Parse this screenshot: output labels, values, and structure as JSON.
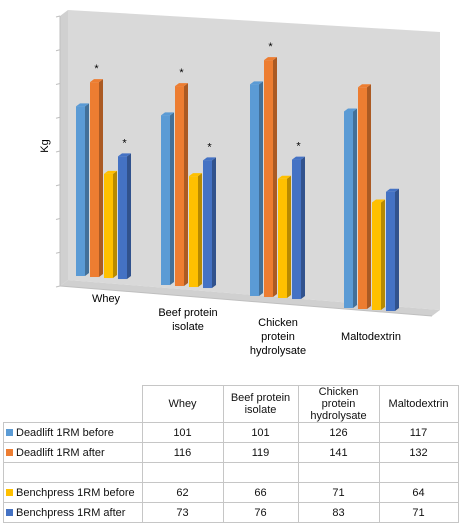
{
  "chart_data": {
    "type": "bar",
    "ylabel": "Kg",
    "categories": [
      "Whey",
      "Beef protein isolate",
      "Chicken protein hydrolysate",
      "Maltodextrin"
    ],
    "category_lines": [
      [
        "Whey"
      ],
      [
        "Beef protein",
        "isolate"
      ],
      [
        "Chicken",
        "protein",
        "hydrolysate"
      ],
      [
        "Maltodextrin"
      ]
    ],
    "series": [
      {
        "name": "Deadlift 1RM before",
        "color": "#5b9bd5",
        "values": [
          101,
          101,
          126,
          117
        ]
      },
      {
        "name": "Deadlift 1RM after",
        "color": "#ed7d31",
        "values": [
          116,
          119,
          141,
          132
        ]
      },
      {
        "name": "Benchpress 1RM before",
        "color": "#ffc000",
        "values": [
          62,
          66,
          71,
          64
        ]
      },
      {
        "name": "Benchpress 1RM after",
        "color": "#4472c4",
        "values": [
          73,
          76,
          83,
          71
        ]
      }
    ],
    "significance_marker": "*",
    "significant": [
      [
        false,
        true,
        false,
        true
      ],
      [
        false,
        true,
        false,
        true
      ],
      [
        false,
        true,
        false,
        true
      ],
      [
        false,
        false,
        false,
        false
      ]
    ],
    "ylim": [
      0,
      160
    ],
    "gridlines": false,
    "legend": "table below chart"
  },
  "table": {
    "headers": [
      "Whey",
      "Beef protein isolate",
      "Chicken protein hydrolysate",
      "Maltodextrin"
    ],
    "rows": [
      {
        "name": "Deadlift 1RM before",
        "color": "#5b9bd5",
        "values": [
          "101",
          "101",
          "126",
          "117"
        ]
      },
      {
        "name": "Deadlift 1RM after",
        "color": "#ed7d31",
        "values": [
          "116",
          "119",
          "141",
          "132"
        ]
      },
      {
        "name": "Benchpress 1RM before",
        "color": "#ffc000",
        "values": [
          "62",
          "66",
          "71",
          "64"
        ]
      },
      {
        "name": "Benchpress 1RM after",
        "color": "#4472c4",
        "values": [
          "73",
          "76",
          "83",
          "71"
        ]
      }
    ]
  }
}
